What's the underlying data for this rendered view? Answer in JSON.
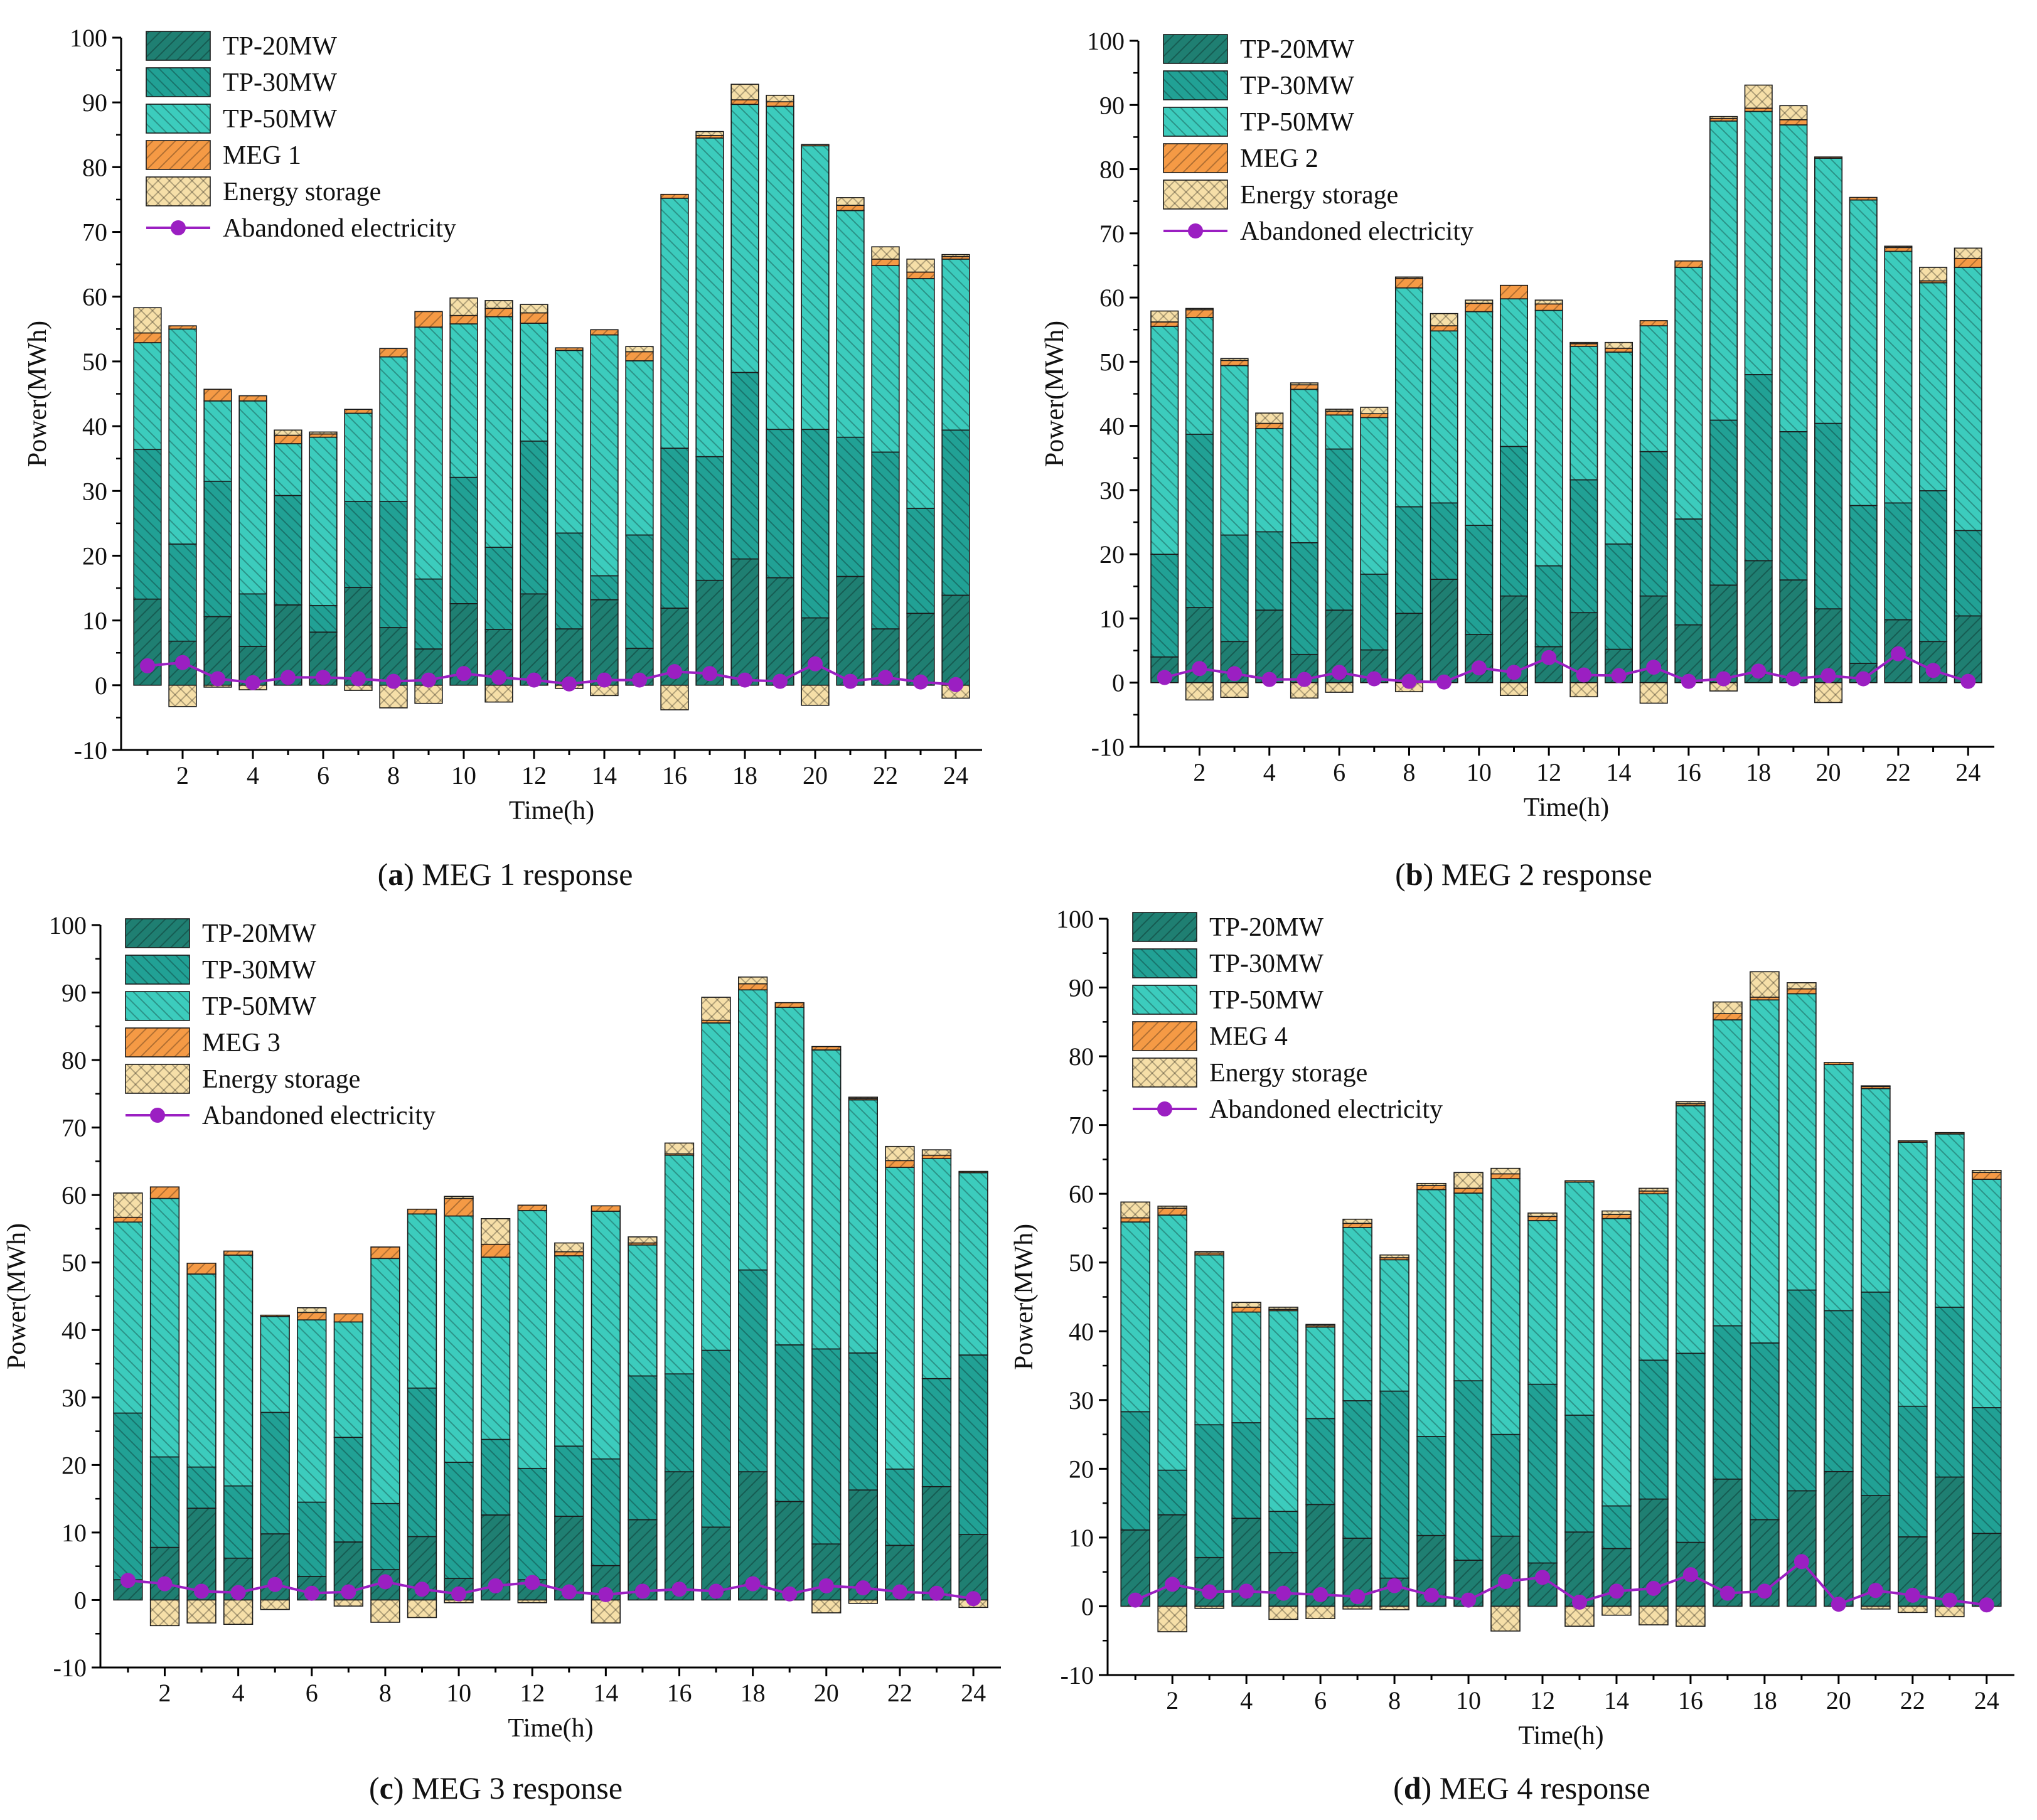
{
  "figure": {
    "colors": {
      "tp20": "#1f7f72",
      "tp30": "#21a195",
      "tp50": "#3cccbd",
      "meg": "#f59a45",
      "storage": "#f6dfa8",
      "line": "#9b1fc2"
    }
  },
  "chart_data": [
    {
      "type": "bar",
      "stacked": true,
      "title": "",
      "caption_letter": "(a)",
      "caption_text": " MEG 1 response",
      "xlabel": "Time(h)",
      "ylabel": "Power(MWh)",
      "ylim": [
        -10,
        100
      ],
      "yticks": [
        -10,
        0,
        10,
        20,
        30,
        40,
        50,
        60,
        70,
        80,
        90,
        100
      ],
      "xticks": [
        2,
        4,
        6,
        8,
        10,
        12,
        14,
        16,
        18,
        20,
        22,
        24
      ],
      "categories": [
        1,
        2,
        3,
        4,
        5,
        6,
        7,
        8,
        9,
        10,
        11,
        12,
        13,
        14,
        15,
        16,
        17,
        18,
        19,
        20,
        21,
        22,
        23,
        24
      ],
      "legend": [
        "TP-20MW",
        "TP-30MW",
        "TP-50MW",
        "MEG 1",
        "Energy storage",
        "Abandoned electricity"
      ],
      "series": [
        {
          "name": "TP-20MW",
          "values": [
            13.3,
            6.8,
            10.6,
            6.0,
            12.4,
            8.2,
            15.1,
            8.9,
            5.6,
            12.6,
            8.6,
            14.1,
            8.7,
            13.2,
            5.7,
            11.9,
            16.2,
            19.5,
            16.6,
            10.4,
            16.8,
            8.7,
            11.1,
            13.9
          ]
        },
        {
          "name": "TP-30MW",
          "values": [
            23.1,
            15.0,
            20.9,
            8.1,
            16.9,
            4.1,
            13.3,
            19.5,
            10.8,
            19.5,
            12.7,
            23.6,
            14.8,
            3.7,
            17.5,
            24.7,
            19.1,
            28.8,
            22.9,
            29.1,
            21.5,
            27.3,
            16.2,
            25.5
          ]
        },
        {
          "name": "TP-50MW",
          "values": [
            16.5,
            33.2,
            12.4,
            29.8,
            8.0,
            26.0,
            13.6,
            22.3,
            38.9,
            23.7,
            35.6,
            18.2,
            28.2,
            37.2,
            26.9,
            38.6,
            49.2,
            41.4,
            49.9,
            43.8,
            35.0,
            28.8,
            35.5,
            26.4
          ]
        },
        {
          "name": "MEG 1",
          "values": [
            1.5,
            0.5,
            1.8,
            0.8,
            1.3,
            0.5,
            0.6,
            1.3,
            2.4,
            1.3,
            1.3,
            1.6,
            0.4,
            0.8,
            1.4,
            0.6,
            0.4,
            0.7,
            0.7,
            0.2,
            0.8,
            1.0,
            1.0,
            0.4
          ]
        },
        {
          "name": "Energy storage",
          "values": [
            3.9,
            0,
            0,
            0,
            0.8,
            0.3,
            0,
            0,
            0,
            2.7,
            1.2,
            1.3,
            0,
            0,
            0.8,
            0,
            0.6,
            2.4,
            1.0,
            0,
            1.2,
            1.9,
            2.0,
            0.3
          ]
        },
        {
          "name": "Energy storage (charging)",
          "values": [
            0,
            -3.3,
            -0.3,
            -0.7,
            0,
            0,
            -0.8,
            -3.5,
            -2.8,
            0,
            -2.6,
            0,
            -0.5,
            -1.6,
            0,
            -3.8,
            0,
            0,
            0,
            -3.1,
            0,
            0,
            0,
            -2.0
          ]
        },
        {
          "name": "Abandoned electricity",
          "values": [
            3.0,
            3.5,
            1.0,
            0.4,
            1.2,
            1.2,
            1.0,
            0.6,
            0.8,
            1.8,
            1.2,
            0.8,
            0.2,
            0.8,
            0.8,
            2.1,
            1.8,
            0.8,
            0.6,
            3.3,
            0.6,
            1.2,
            0.5,
            0.1
          ]
        }
      ]
    },
    {
      "type": "bar",
      "stacked": true,
      "title": "",
      "caption_letter": "(b)",
      "caption_text": " MEG 2 response",
      "xlabel": "Time(h)",
      "ylabel": "Power(MWh)",
      "ylim": [
        -10,
        100
      ],
      "yticks": [
        -10,
        0,
        10,
        20,
        30,
        40,
        50,
        60,
        70,
        80,
        90,
        100
      ],
      "xticks": [
        2,
        4,
        6,
        8,
        10,
        12,
        14,
        16,
        18,
        20,
        22,
        24
      ],
      "categories": [
        1,
        2,
        3,
        4,
        5,
        6,
        7,
        8,
        9,
        10,
        11,
        12,
        13,
        14,
        15,
        16,
        17,
        18,
        19,
        20,
        21,
        22,
        23,
        24
      ],
      "legend": [
        "TP-20MW",
        "TP-30MW",
        "TP-50MW",
        "MEG 2",
        "Energy storage",
        "Abandoned electricity"
      ],
      "series": [
        {
          "name": "TP-20MW",
          "values": [
            4.0,
            11.7,
            6.4,
            11.3,
            4.4,
            11.3,
            5.1,
            10.8,
            16.1,
            7.5,
            13.5,
            5.6,
            10.9,
            5.2,
            13.5,
            9.0,
            15.2,
            19.0,
            16.0,
            11.5,
            3.0,
            9.8,
            6.4,
            10.4
          ]
        },
        {
          "name": "TP-30MW",
          "values": [
            16.0,
            27.0,
            16.6,
            12.2,
            17.4,
            25.1,
            11.8,
            16.6,
            11.9,
            17.0,
            23.3,
            12.6,
            20.7,
            16.4,
            22.5,
            16.5,
            25.7,
            29.0,
            23.1,
            28.9,
            24.6,
            18.2,
            23.5,
            13.3
          ]
        },
        {
          "name": "TP-50MW",
          "values": [
            35.5,
            18.2,
            26.4,
            16.1,
            23.9,
            5.3,
            24.4,
            34.1,
            26.8,
            33.3,
            23.0,
            39.8,
            20.8,
            29.9,
            19.6,
            39.2,
            46.6,
            41.0,
            47.8,
            41.3,
            47.6,
            39.2,
            32.4,
            41.0
          ]
        },
        {
          "name": "MEG 2",
          "values": [
            0.7,
            1.2,
            0.8,
            0.8,
            0.7,
            0.6,
            0.6,
            1.5,
            0.8,
            1.3,
            2.1,
            1.0,
            0.4,
            0.6,
            0.8,
            1.0,
            0.4,
            0.5,
            0.8,
            0.2,
            0.4,
            0.6,
            0.3,
            1.4
          ]
        },
        {
          "name": "Energy storage",
          "values": [
            1.7,
            0.2,
            0.3,
            1.6,
            0.3,
            0.3,
            1.0,
            0.2,
            1.9,
            0.5,
            0,
            0.6,
            0.2,
            0.9,
            0,
            0,
            0.3,
            3.6,
            2.2,
            0,
            0,
            0.2,
            2.1,
            1.6
          ]
        },
        {
          "name": "Energy storage (charging)",
          "values": [
            0,
            -2.7,
            -2.3,
            0,
            -2.4,
            -1.5,
            0,
            -1.4,
            0,
            0,
            -2.0,
            0,
            -2.2,
            0,
            -3.2,
            0,
            -1.3,
            0,
            0,
            -3.1,
            0,
            0,
            0,
            0
          ]
        },
        {
          "name": "Abandoned electricity",
          "values": [
            0.8,
            2.2,
            1.4,
            0.5,
            0.5,
            1.6,
            0.6,
            0.2,
            0.1,
            2.3,
            1.6,
            3.9,
            1.2,
            1.1,
            2.4,
            0.2,
            0.6,
            1.8,
            0.6,
            1.1,
            0.6,
            4.5,
            1.9,
            0.2
          ]
        }
      ]
    },
    {
      "type": "bar",
      "stacked": true,
      "title": "",
      "caption_letter": "(c)",
      "caption_text": " MEG 3 response",
      "xlabel": "Time(h)",
      "ylabel": "Power(MWh)",
      "ylim": [
        -10,
        100
      ],
      "yticks": [
        -10,
        0,
        10,
        20,
        30,
        40,
        50,
        60,
        70,
        80,
        90,
        100
      ],
      "xticks": [
        2,
        4,
        6,
        8,
        10,
        12,
        14,
        16,
        18,
        20,
        22,
        24
      ],
      "categories": [
        1,
        2,
        3,
        4,
        5,
        6,
        7,
        8,
        9,
        10,
        11,
        12,
        13,
        14,
        15,
        16,
        17,
        18,
        19,
        20,
        21,
        22,
        23,
        24
      ],
      "legend": [
        "TP-20MW",
        "TP-30MW",
        "TP-50MW",
        "MEG 3",
        "Energy storage",
        "Abandoned electricity"
      ],
      "series": [
        {
          "name": "TP-20MW",
          "values": [
            3.0,
            7.8,
            13.6,
            6.2,
            9.8,
            3.5,
            8.6,
            4.5,
            9.4,
            3.2,
            12.6,
            3.0,
            12.4,
            5.1,
            11.9,
            19.0,
            10.8,
            19.0,
            14.6,
            8.3,
            16.3,
            8.1,
            16.8,
            9.7
          ]
        },
        {
          "name": "TP-30MW",
          "values": [
            24.7,
            13.4,
            6.1,
            10.7,
            18.0,
            11.0,
            15.5,
            9.8,
            22.0,
            17.2,
            11.2,
            16.5,
            10.4,
            15.8,
            21.3,
            14.5,
            26.2,
            29.9,
            23.2,
            28.9,
            20.3,
            11.3,
            16.0,
            26.6
          ]
        },
        {
          "name": "TP-50MW",
          "values": [
            28.3,
            38.3,
            28.6,
            34.2,
            14.2,
            27.0,
            17.1,
            36.3,
            25.8,
            36.5,
            27.0,
            38.2,
            28.2,
            36.7,
            19.4,
            32.4,
            48.5,
            41.5,
            50.0,
            44.3,
            37.5,
            44.7,
            32.6,
            27.0
          ]
        },
        {
          "name": "MEG 3",
          "values": [
            0.7,
            1.7,
            1.6,
            0.6,
            0.2,
            1.1,
            1.2,
            1.7,
            0.7,
            2.6,
            1.9,
            0.8,
            0.6,
            0.8,
            0.3,
            0.2,
            0.4,
            0.9,
            0.7,
            0.5,
            0.2,
            1.0,
            0.5,
            0.2
          ]
        },
        {
          "name": "Energy storage",
          "values": [
            3.6,
            0,
            0,
            0,
            0,
            0.7,
            0,
            0,
            0,
            0.3,
            3.8,
            0,
            1.3,
            0,
            0.9,
            1.6,
            3.4,
            1.0,
            0,
            0,
            0.2,
            2.1,
            0.8,
            0
          ]
        },
        {
          "name": "Energy storage (charging)",
          "values": [
            0,
            -3.8,
            -3.4,
            -3.6,
            -1.4,
            0,
            -0.9,
            -3.3,
            -2.6,
            -0.4,
            0,
            -0.4,
            0,
            -3.4,
            0,
            0,
            0,
            0,
            0,
            -1.9,
            -0.5,
            0,
            0,
            -1.1
          ]
        },
        {
          "name": "Abandoned electricity",
          "values": [
            2.9,
            2.4,
            1.3,
            1.1,
            2.3,
            1.0,
            1.2,
            2.7,
            1.6,
            0.9,
            2.1,
            2.6,
            1.2,
            0.8,
            1.3,
            1.6,
            1.3,
            2.4,
            0.9,
            2.1,
            1.8,
            1.2,
            1.0,
            0.2
          ]
        }
      ]
    },
    {
      "type": "bar",
      "stacked": true,
      "title": "",
      "caption_letter": "(d)",
      "caption_text": " MEG 4 response",
      "xlabel": "Time(h)",
      "ylabel": "Power(MWh)",
      "ylim": [
        -10,
        100
      ],
      "yticks": [
        -10,
        0,
        10,
        20,
        30,
        40,
        50,
        60,
        70,
        80,
        90,
        100
      ],
      "xticks": [
        2,
        4,
        6,
        8,
        10,
        12,
        14,
        16,
        18,
        20,
        22,
        24
      ],
      "categories": [
        1,
        2,
        3,
        4,
        5,
        6,
        7,
        8,
        9,
        10,
        11,
        12,
        13,
        14,
        15,
        16,
        17,
        18,
        19,
        20,
        21,
        22,
        23,
        24
      ],
      "legend": [
        "TP-20MW",
        "TP-30MW",
        "TP-50MW",
        "MEG 4",
        "Energy storage",
        "Abandoned electricity"
      ],
      "series": [
        {
          "name": "TP-20MW",
          "values": [
            11.1,
            13.3,
            7.1,
            12.8,
            7.8,
            14.8,
            9.9,
            4.1,
            10.3,
            6.7,
            10.2,
            6.3,
            10.8,
            8.4,
            15.6,
            9.3,
            18.5,
            12.6,
            16.8,
            19.6,
            16.1,
            10.1,
            18.8,
            10.6
          ]
        },
        {
          "name": "TP-30MW",
          "values": [
            17.2,
            6.5,
            19.3,
            13.9,
            6.0,
            12.5,
            20.0,
            27.2,
            14.4,
            26.1,
            14.8,
            26.0,
            17.0,
            6.2,
            20.2,
            27.5,
            22.3,
            25.7,
            29.2,
            23.4,
            29.6,
            19.0,
            24.7,
            18.3
          ]
        },
        {
          "name": "TP-50MW",
          "values": [
            27.6,
            37.1,
            24.7,
            16.1,
            29.2,
            13.3,
            25.2,
            19.1,
            35.9,
            27.3,
            37.2,
            23.8,
            33.9,
            41.8,
            24.2,
            36.0,
            44.5,
            49.9,
            43.1,
            35.8,
            29.6,
            38.4,
            25.2,
            33.2
          ]
        },
        {
          "name": "MEG 4",
          "values": [
            0.6,
            1.0,
            0.3,
            0.7,
            0.2,
            0.2,
            0.6,
            0.3,
            0.6,
            0.7,
            0.7,
            0.6,
            0.2,
            0.6,
            0.4,
            0.3,
            0.9,
            0.4,
            0.7,
            0.3,
            0.3,
            0.2,
            0.2,
            1.0
          ]
        },
        {
          "name": "Energy storage",
          "values": [
            2.3,
            0.3,
            0.2,
            0.7,
            0.3,
            0.2,
            0.6,
            0.4,
            0.3,
            2.3,
            0.8,
            0.5,
            0,
            0.5,
            0.4,
            0.3,
            1.7,
            3.7,
            0.9,
            0,
            0.1,
            0,
            0,
            0.3
          ]
        },
        {
          "name": "Energy storage (charging)",
          "values": [
            0,
            -3.7,
            -0.3,
            0,
            -1.9,
            -1.8,
            -0.4,
            -0.5,
            0,
            0,
            -3.6,
            0,
            -2.9,
            -1.3,
            -2.7,
            -2.9,
            0,
            0,
            0,
            0,
            -0.4,
            -0.9,
            -1.5,
            0
          ]
        },
        {
          "name": "Abandoned electricity",
          "values": [
            0.9,
            3.2,
            2.1,
            2.2,
            1.9,
            1.7,
            1.4,
            3.0,
            1.6,
            0.9,
            3.6,
            4.2,
            0.6,
            2.2,
            2.6,
            4.6,
            1.9,
            2.2,
            6.5,
            0.3,
            2.3,
            1.6,
            0.9,
            0.2
          ]
        }
      ]
    }
  ]
}
